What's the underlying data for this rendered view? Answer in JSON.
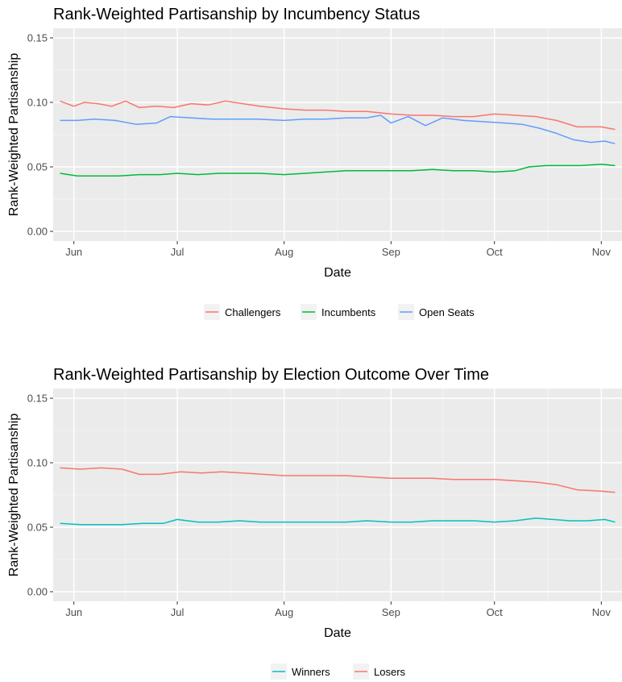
{
  "chart_data": [
    {
      "type": "line",
      "title": "Rank-Weighted Partisanship by Incumbency Status",
      "xlabel": "Date",
      "ylabel": "Rank-Weighted Partisanship",
      "xlim": [
        "2018-05-26",
        "2018-11-07"
      ],
      "ylim": [
        -0.0075,
        0.1575
      ],
      "x_ticks": [
        {
          "date": "2018-06-01",
          "label": "Jun"
        },
        {
          "date": "2018-07-01",
          "label": "Jul"
        },
        {
          "date": "2018-08-01",
          "label": "Aug"
        },
        {
          "date": "2018-09-01",
          "label": "Sep"
        },
        {
          "date": "2018-10-01",
          "label": "Oct"
        },
        {
          "date": "2018-11-01",
          "label": "Nov"
        }
      ],
      "y_ticks": [
        0.0,
        0.05,
        0.1,
        0.15
      ],
      "y_tick_labels": [
        "0.00",
        "0.05",
        "0.10",
        "0.15"
      ],
      "grid": true,
      "legend_position": "bottom",
      "series": [
        {
          "name": "Challengers",
          "color": "#F8766D",
          "points": [
            [
              "2018-05-28",
              0.101
            ],
            [
              "2018-06-01",
              0.097
            ],
            [
              "2018-06-04",
              0.1
            ],
            [
              "2018-06-08",
              0.099
            ],
            [
              "2018-06-12",
              0.097
            ],
            [
              "2018-06-16",
              0.101
            ],
            [
              "2018-06-20",
              0.096
            ],
            [
              "2018-06-25",
              0.097
            ],
            [
              "2018-06-30",
              0.096
            ],
            [
              "2018-07-05",
              0.099
            ],
            [
              "2018-07-10",
              0.098
            ],
            [
              "2018-07-15",
              0.101
            ],
            [
              "2018-07-20",
              0.099
            ],
            [
              "2018-07-25",
              0.097
            ],
            [
              "2018-08-01",
              0.095
            ],
            [
              "2018-08-07",
              0.094
            ],
            [
              "2018-08-13",
              0.094
            ],
            [
              "2018-08-19",
              0.093
            ],
            [
              "2018-08-25",
              0.093
            ],
            [
              "2018-09-01",
              0.091
            ],
            [
              "2018-09-07",
              0.09
            ],
            [
              "2018-09-13",
              0.09
            ],
            [
              "2018-09-19",
              0.089
            ],
            [
              "2018-09-25",
              0.089
            ],
            [
              "2018-10-01",
              0.091
            ],
            [
              "2018-10-07",
              0.09
            ],
            [
              "2018-10-13",
              0.089
            ],
            [
              "2018-10-19",
              0.086
            ],
            [
              "2018-10-25",
              0.081
            ],
            [
              "2018-11-01",
              0.081
            ],
            [
              "2018-11-05",
              0.079
            ]
          ]
        },
        {
          "name": "Incumbents",
          "color": "#00BA38",
          "points": [
            [
              "2018-05-28",
              0.045
            ],
            [
              "2018-06-02",
              0.043
            ],
            [
              "2018-06-08",
              0.043
            ],
            [
              "2018-06-14",
              0.043
            ],
            [
              "2018-06-20",
              0.044
            ],
            [
              "2018-06-26",
              0.044
            ],
            [
              "2018-07-01",
              0.045
            ],
            [
              "2018-07-07",
              0.044
            ],
            [
              "2018-07-13",
              0.045
            ],
            [
              "2018-07-19",
              0.045
            ],
            [
              "2018-07-25",
              0.045
            ],
            [
              "2018-08-01",
              0.044
            ],
            [
              "2018-08-07",
              0.045
            ],
            [
              "2018-08-13",
              0.046
            ],
            [
              "2018-08-19",
              0.047
            ],
            [
              "2018-08-25",
              0.047
            ],
            [
              "2018-09-01",
              0.047
            ],
            [
              "2018-09-07",
              0.047
            ],
            [
              "2018-09-13",
              0.048
            ],
            [
              "2018-09-19",
              0.047
            ],
            [
              "2018-09-25",
              0.047
            ],
            [
              "2018-10-01",
              0.046
            ],
            [
              "2018-10-07",
              0.047
            ],
            [
              "2018-10-11",
              0.05
            ],
            [
              "2018-10-16",
              0.051
            ],
            [
              "2018-10-21",
              0.051
            ],
            [
              "2018-10-26",
              0.051
            ],
            [
              "2018-11-01",
              0.052
            ],
            [
              "2018-11-05",
              0.051
            ]
          ]
        },
        {
          "name": "Open Seats",
          "color": "#619CFF",
          "points": [
            [
              "2018-05-28",
              0.086
            ],
            [
              "2018-06-02",
              0.086
            ],
            [
              "2018-06-07",
              0.087
            ],
            [
              "2018-06-13",
              0.086
            ],
            [
              "2018-06-19",
              0.083
            ],
            [
              "2018-06-25",
              0.084
            ],
            [
              "2018-06-29",
              0.089
            ],
            [
              "2018-07-05",
              0.088
            ],
            [
              "2018-07-11",
              0.087
            ],
            [
              "2018-07-17",
              0.087
            ],
            [
              "2018-07-24",
              0.087
            ],
            [
              "2018-08-01",
              0.086
            ],
            [
              "2018-08-07",
              0.087
            ],
            [
              "2018-08-13",
              0.087
            ],
            [
              "2018-08-19",
              0.088
            ],
            [
              "2018-08-25",
              0.088
            ],
            [
              "2018-08-29",
              0.09
            ],
            [
              "2018-09-01",
              0.084
            ],
            [
              "2018-09-06",
              0.089
            ],
            [
              "2018-09-11",
              0.082
            ],
            [
              "2018-09-16",
              0.088
            ],
            [
              "2018-09-22",
              0.086
            ],
            [
              "2018-09-28",
              0.085
            ],
            [
              "2018-10-04",
              0.084
            ],
            [
              "2018-10-09",
              0.083
            ],
            [
              "2018-10-14",
              0.08
            ],
            [
              "2018-10-19",
              0.076
            ],
            [
              "2018-10-24",
              0.071
            ],
            [
              "2018-10-29",
              0.069
            ],
            [
              "2018-11-02",
              0.07
            ],
            [
              "2018-11-05",
              0.068
            ]
          ]
        }
      ]
    },
    {
      "type": "line",
      "title": "Rank-Weighted Partisanship by Election Outcome Over Time",
      "xlabel": "Date",
      "ylabel": "Rank-Weighted Partisanship",
      "xlim": [
        "2018-05-26",
        "2018-11-07"
      ],
      "ylim": [
        -0.0075,
        0.1575
      ],
      "x_ticks": [
        {
          "date": "2018-06-01",
          "label": "Jun"
        },
        {
          "date": "2018-07-01",
          "label": "Jul"
        },
        {
          "date": "2018-08-01",
          "label": "Aug"
        },
        {
          "date": "2018-09-01",
          "label": "Sep"
        },
        {
          "date": "2018-10-01",
          "label": "Oct"
        },
        {
          "date": "2018-11-01",
          "label": "Nov"
        }
      ],
      "y_ticks": [
        0.0,
        0.05,
        0.1,
        0.15
      ],
      "y_tick_labels": [
        "0.00",
        "0.05",
        "0.10",
        "0.15"
      ],
      "grid": true,
      "legend_position": "bottom",
      "series": [
        {
          "name": "Winners",
          "color": "#00BFC4",
          "points": [
            [
              "2018-05-28",
              0.053
            ],
            [
              "2018-06-03",
              0.052
            ],
            [
              "2018-06-09",
              0.052
            ],
            [
              "2018-06-15",
              0.052
            ],
            [
              "2018-06-21",
              0.053
            ],
            [
              "2018-06-27",
              0.053
            ],
            [
              "2018-07-01",
              0.056
            ],
            [
              "2018-07-07",
              0.054
            ],
            [
              "2018-07-13",
              0.054
            ],
            [
              "2018-07-19",
              0.055
            ],
            [
              "2018-07-25",
              0.054
            ],
            [
              "2018-08-01",
              0.054
            ],
            [
              "2018-08-07",
              0.054
            ],
            [
              "2018-08-13",
              0.054
            ],
            [
              "2018-08-19",
              0.054
            ],
            [
              "2018-08-25",
              0.055
            ],
            [
              "2018-09-01",
              0.054
            ],
            [
              "2018-09-07",
              0.054
            ],
            [
              "2018-09-13",
              0.055
            ],
            [
              "2018-09-19",
              0.055
            ],
            [
              "2018-09-25",
              0.055
            ],
            [
              "2018-10-01",
              0.054
            ],
            [
              "2018-10-07",
              0.055
            ],
            [
              "2018-10-13",
              0.057
            ],
            [
              "2018-10-18",
              0.056
            ],
            [
              "2018-10-23",
              0.055
            ],
            [
              "2018-10-28",
              0.055
            ],
            [
              "2018-11-02",
              0.056
            ],
            [
              "2018-11-05",
              0.054
            ]
          ]
        },
        {
          "name": "Losers",
          "color": "#F8766D",
          "points": [
            [
              "2018-05-28",
              0.096
            ],
            [
              "2018-06-03",
              0.095
            ],
            [
              "2018-06-09",
              0.096
            ],
            [
              "2018-06-15",
              0.095
            ],
            [
              "2018-06-20",
              0.091
            ],
            [
              "2018-06-26",
              0.091
            ],
            [
              "2018-07-02",
              0.093
            ],
            [
              "2018-07-08",
              0.092
            ],
            [
              "2018-07-14",
              0.093
            ],
            [
              "2018-07-20",
              0.092
            ],
            [
              "2018-07-26",
              0.091
            ],
            [
              "2018-08-01",
              0.09
            ],
            [
              "2018-08-07",
              0.09
            ],
            [
              "2018-08-13",
              0.09
            ],
            [
              "2018-08-19",
              0.09
            ],
            [
              "2018-08-25",
              0.089
            ],
            [
              "2018-09-01",
              0.088
            ],
            [
              "2018-09-07",
              0.088
            ],
            [
              "2018-09-13",
              0.088
            ],
            [
              "2018-09-19",
              0.087
            ],
            [
              "2018-09-25",
              0.087
            ],
            [
              "2018-10-01",
              0.087
            ],
            [
              "2018-10-07",
              0.086
            ],
            [
              "2018-10-13",
              0.085
            ],
            [
              "2018-10-19",
              0.083
            ],
            [
              "2018-10-25",
              0.079
            ],
            [
              "2018-11-01",
              0.078
            ],
            [
              "2018-11-05",
              0.077
            ]
          ]
        }
      ]
    }
  ]
}
